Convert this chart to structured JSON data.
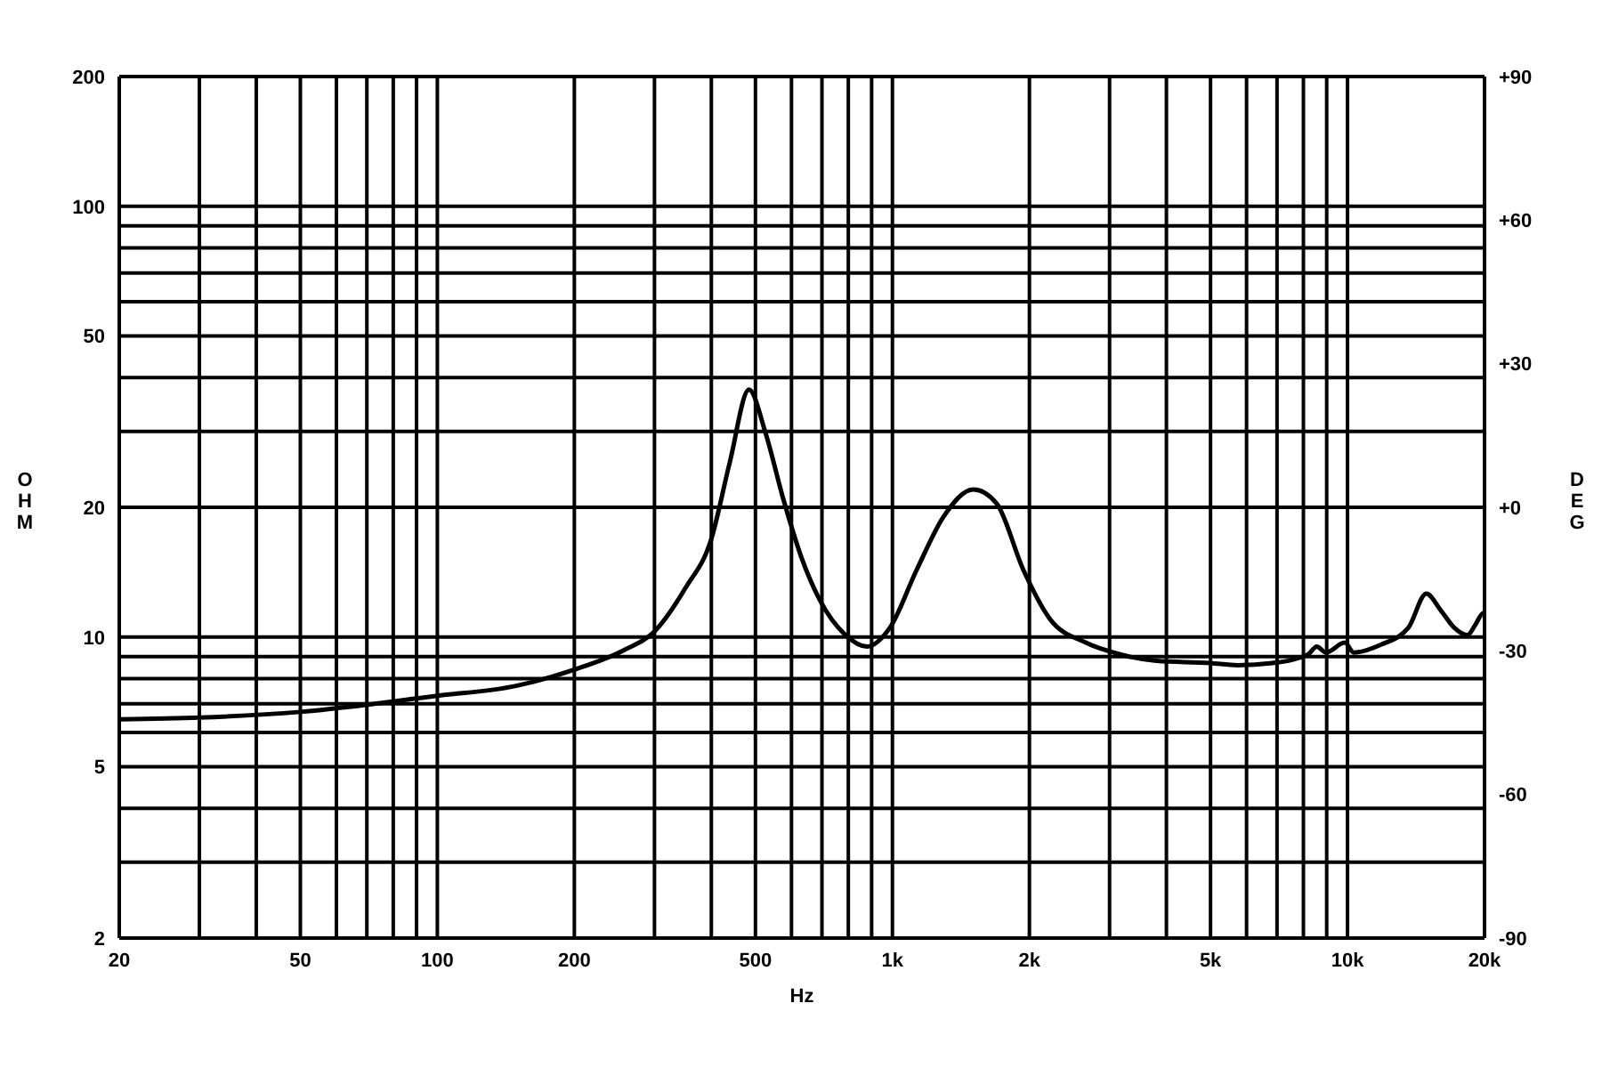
{
  "chart_data": {
    "type": "line",
    "xlabel": "Hz",
    "ylabel": "OHM",
    "y2label": "DEG",
    "log": "xy",
    "grid": true,
    "xlim": [
      20,
      20000
    ],
    "ylim": [
      2,
      200
    ],
    "y2lim": [
      -90,
      90
    ],
    "xticks": [
      20,
      {
        "value": 30,
        "label": null
      },
      {
        "value": 40,
        "label": null
      },
      50,
      {
        "value": 60,
        "label": null
      },
      {
        "value": 70,
        "label": null
      },
      {
        "value": 80,
        "label": null
      },
      {
        "value": 90,
        "label": null
      },
      100,
      200,
      {
        "value": 300,
        "label": null
      },
      {
        "value": 400,
        "label": null
      },
      500,
      {
        "value": 600,
        "label": null
      },
      {
        "value": 700,
        "label": null
      },
      {
        "value": 800,
        "label": null
      },
      {
        "value": 900,
        "label": null
      },
      {
        "value": 1000,
        "label": "1k"
      },
      {
        "value": 2000,
        "label": "2k"
      },
      {
        "value": 3000,
        "label": null
      },
      {
        "value": 4000,
        "label": null
      },
      {
        "value": 5000,
        "label": "5k"
      },
      {
        "value": 6000,
        "label": null
      },
      {
        "value": 7000,
        "label": null
      },
      {
        "value": 8000,
        "label": null
      },
      {
        "value": 9000,
        "label": null
      },
      {
        "value": 10000,
        "label": "10k"
      },
      {
        "value": 20000,
        "label": "20k"
      }
    ],
    "yticks": [
      2,
      {
        "value": 3,
        "label": null
      },
      {
        "value": 4,
        "label": null
      },
      5,
      {
        "value": 6,
        "label": null
      },
      {
        "value": 7,
        "label": null
      },
      {
        "value": 8,
        "label": null
      },
      {
        "value": 9,
        "label": null
      },
      10,
      20,
      {
        "value": 30,
        "label": null
      },
      {
        "value": 40,
        "label": null
      },
      50,
      {
        "value": 60,
        "label": null
      },
      {
        "value": 70,
        "label": null
      },
      {
        "value": 80,
        "label": null
      },
      {
        "value": 90,
        "label": null
      },
      100,
      200
    ],
    "y2ticks": [
      -90,
      -60,
      -30,
      {
        "value": 0,
        "label": "+0"
      },
      {
        "value": 30,
        "label": "+30"
      },
      {
        "value": 60,
        "label": "+60"
      },
      {
        "value": 90,
        "label": "+90"
      }
    ],
    "x": [
      20,
      30,
      50,
      100,
      149,
      200,
      256,
      300,
      351,
      400,
      439,
      484,
      526,
      575,
      631,
      692,
      789,
      879,
      987,
      1130,
      1294,
      1507,
      1695,
      1940,
      2220,
      2660,
      3180,
      3800,
      4990,
      5730,
      6840,
      8180,
      8560,
      8960,
      9860,
      10320,
      11850,
      13600,
      14900,
      16060,
      17170,
      18330,
      19020,
      19730,
      20000
    ],
    "series": [
      {
        "color": "#000000",
        "values": [
          6.44,
          6.5,
          6.7,
          7.3,
          7.7,
          8.4,
          9.3,
          10.3,
          13.0,
          16.9,
          25.4,
          37.5,
          29.8,
          21.0,
          15.3,
          12.2,
          10.1,
          9.5,
          10.5,
          14.3,
          19.0,
          22.0,
          20.4,
          14.3,
          11.0,
          9.7,
          9.1,
          8.8,
          8.7,
          8.6,
          8.7,
          9.1,
          9.5,
          9.2,
          9.7,
          9.2,
          9.6,
          10.5,
          12.6,
          11.5,
          10.5,
          10.1,
          10.6,
          11.3,
          11.4
        ]
      }
    ]
  }
}
